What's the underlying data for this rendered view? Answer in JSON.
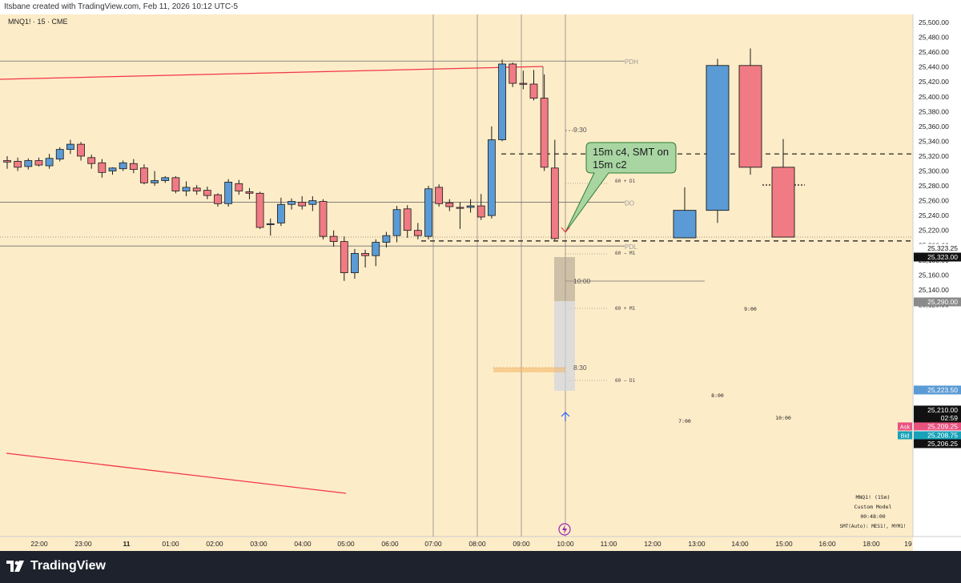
{
  "header": {
    "title": "Itsbane created with TradingView.com, Feb 11, 2026 10:12 UTC-5"
  },
  "symbol": {
    "label": "MNQ1! · 15 · CME"
  },
  "branding": {
    "logo_text": "TradingView"
  },
  "colors": {
    "background": "#fdecc8",
    "bull": "#5b9bd5",
    "bear": "#f07b84",
    "trendline": "#f23645",
    "grid_line": "#888888",
    "callout_fill": "#a8d5a2"
  },
  "axis": {
    "price_ticks": [
      "25,500.00",
      "25,480.00",
      "25,460.00",
      "25,440.00",
      "25,420.00",
      "25,400.00",
      "25,380.00",
      "25,360.00",
      "25,340.00",
      "25,320.00",
      "25,300.00",
      "25,280.00",
      "25,260.00",
      "25,240.00",
      "25,220.00",
      "25,200.00",
      "25,180.00",
      "25,160.00",
      "25,140.00",
      "25,120.00"
    ],
    "time_ticks": [
      "22:00",
      "23:00",
      "11",
      "01:00",
      "02:00",
      "03:00",
      "04:00",
      "05:00",
      "06:00",
      "07:00",
      "08:00",
      "09:00",
      "10:00",
      "11:00",
      "12:00",
      "13:00",
      "14:00",
      "15:00",
      "16:00",
      "18:00",
      "19"
    ]
  },
  "price_badges": {
    "b1": "25,323.25",
    "b2": "25,323.00",
    "b3": "25,290.00",
    "b4": "25,223.50",
    "b5": "25,210.00",
    "b6": "02:59",
    "ask_label": "Ask",
    "ask_value": "25,209.25",
    "bid_label": "Bid",
    "bid_value": "25,208.75",
    "b9": "25,206.25"
  },
  "annotations": {
    "callout_line1": "15m c4, SMT on",
    "callout_line2": "15m c2",
    "pdh": "PDH",
    "pdl": "PDL",
    "do": "DO",
    "t930": "9:30",
    "t1000": "10:00",
    "t830": "8:30",
    "l60d1_up": "60 + D1",
    "l60m1_down": "60 − M1",
    "l60m1_up": "60 + M1",
    "l60d1_down": "60 − D1",
    "htf_700": "7:00",
    "htf_800": "8:00",
    "htf_900": "9:00",
    "htf_1000": "10:00"
  },
  "info_panel": {
    "line1": "MNQ1! (15m)",
    "line2": "Custom Model",
    "line3": "00:48:00",
    "line4": "SMT(Auto): MES1!, MYM1!"
  },
  "chart_data": {
    "type": "candlestick",
    "symbol": "MNQ1!",
    "interval": "15",
    "ylim": [
      25110,
      25510
    ],
    "ltf_candles": [
      {
        "time": "21:30",
        "o": 25314,
        "h": 25320,
        "l": 25303,
        "c": 25312
      },
      {
        "time": "21:45",
        "o": 25313,
        "h": 25318,
        "l": 25300,
        "c": 25305
      },
      {
        "time": "22:00",
        "o": 25306,
        "h": 25317,
        "l": 25302,
        "c": 25314
      },
      {
        "time": "22:15",
        "o": 25314,
        "h": 25318,
        "l": 25306,
        "c": 25308
      },
      {
        "time": "22:30",
        "o": 25307,
        "h": 25323,
        "l": 25303,
        "c": 25317
      },
      {
        "time": "22:45",
        "o": 25316,
        "h": 25332,
        "l": 25313,
        "c": 25329
      },
      {
        "time": "23:00",
        "o": 25329,
        "h": 25342,
        "l": 25323,
        "c": 25336
      },
      {
        "time": "23:15",
        "o": 25336,
        "h": 25339,
        "l": 25314,
        "c": 25320
      },
      {
        "time": "23:30",
        "o": 25318,
        "h": 25322,
        "l": 25303,
        "c": 25310
      },
      {
        "time": "23:45",
        "o": 25311,
        "h": 25316,
        "l": 25291,
        "c": 25298
      },
      {
        "time": "00:00",
        "o": 25300,
        "h": 25305,
        "l": 25295,
        "c": 25304
      },
      {
        "time": "00:15",
        "o": 25303,
        "h": 25314,
        "l": 25300,
        "c": 25311
      },
      {
        "time": "00:30",
        "o": 25310,
        "h": 25316,
        "l": 25297,
        "c": 25302
      },
      {
        "time": "00:45",
        "o": 25304,
        "h": 25309,
        "l": 25282,
        "c": 25284
      },
      {
        "time": "01:00",
        "o": 25284,
        "h": 25300,
        "l": 25280,
        "c": 25287
      },
      {
        "time": "01:15",
        "o": 25287,
        "h": 25293,
        "l": 25284,
        "c": 25291
      },
      {
        "time": "01:30",
        "o": 25291,
        "h": 25293,
        "l": 25270,
        "c": 25273
      },
      {
        "time": "01:45",
        "o": 25273,
        "h": 25286,
        "l": 25266,
        "c": 25278
      },
      {
        "time": "02:00",
        "o": 25277,
        "h": 25281,
        "l": 25268,
        "c": 25273
      },
      {
        "time": "02:15",
        "o": 25274,
        "h": 25279,
        "l": 25262,
        "c": 25267
      },
      {
        "time": "02:30",
        "o": 25268,
        "h": 25270,
        "l": 25252,
        "c": 25256
      },
      {
        "time": "02:45",
        "o": 25256,
        "h": 25289,
        "l": 25252,
        "c": 25285
      },
      {
        "time": "03:00",
        "o": 25283,
        "h": 25288,
        "l": 25268,
        "c": 25273
      },
      {
        "time": "03:15",
        "o": 25272,
        "h": 25277,
        "l": 25262,
        "c": 25270
      },
      {
        "time": "03:30",
        "o": 25270,
        "h": 25272,
        "l": 25222,
        "c": 25224
      },
      {
        "time": "03:45",
        "o": 25228,
        "h": 25236,
        "l": 25213,
        "c": 25229
      },
      {
        "time": "04:00",
        "o": 25230,
        "h": 25264,
        "l": 25226,
        "c": 25255
      },
      {
        "time": "04:15",
        "o": 25255,
        "h": 25263,
        "l": 25248,
        "c": 25259
      },
      {
        "time": "04:30",
        "o": 25258,
        "h": 25266,
        "l": 25248,
        "c": 25253
      },
      {
        "time": "04:45",
        "o": 25255,
        "h": 25266,
        "l": 25246,
        "c": 25260
      },
      {
        "time": "05:00",
        "o": 25259,
        "h": 25262,
        "l": 25208,
        "c": 25212
      },
      {
        "time": "05:15",
        "o": 25212,
        "h": 25220,
        "l": 25198,
        "c": 25205
      },
      {
        "time": "05:30",
        "o": 25205,
        "h": 25212,
        "l": 25152,
        "c": 25163
      },
      {
        "time": "05:45",
        "o": 25163,
        "h": 25195,
        "l": 25155,
        "c": 25189
      },
      {
        "time": "06:00",
        "o": 25189,
        "h": 25194,
        "l": 25170,
        "c": 25186
      },
      {
        "time": "06:15",
        "o": 25186,
        "h": 25208,
        "l": 25172,
        "c": 25204
      },
      {
        "time": "06:30",
        "o": 25204,
        "h": 25218,
        "l": 25197,
        "c": 25213
      },
      {
        "time": "06:45",
        "o": 25213,
        "h": 25253,
        "l": 25204,
        "c": 25248
      },
      {
        "time": "07:00",
        "o": 25249,
        "h": 25254,
        "l": 25210,
        "c": 25220
      },
      {
        "time": "07:15",
        "o": 25220,
        "h": 25230,
        "l": 25208,
        "c": 25213
      },
      {
        "time": "07:30",
        "o": 25212,
        "h": 25280,
        "l": 25208,
        "c": 25276
      },
      {
        "time": "07:45",
        "o": 25278,
        "h": 25282,
        "l": 25252,
        "c": 25256
      },
      {
        "time": "08:00",
        "o": 25257,
        "h": 25262,
        "l": 25246,
        "c": 25252
      },
      {
        "time": "08:15",
        "o": 25251,
        "h": 25258,
        "l": 25222,
        "c": 25250
      },
      {
        "time": "08:30",
        "o": 25251,
        "h": 25262,
        "l": 25244,
        "c": 25253
      },
      {
        "time": "08:45",
        "o": 25253,
        "h": 25269,
        "l": 25234,
        "c": 25238
      },
      {
        "time": "09:00",
        "o": 25240,
        "h": 25360,
        "l": 25236,
        "c": 25342
      },
      {
        "time": "09:15",
        "o": 25342,
        "h": 25450,
        "l": 25340,
        "c": 25444
      },
      {
        "time": "09:30",
        "o": 25444,
        "h": 25446,
        "l": 25413,
        "c": 25418
      },
      {
        "time": "09:45",
        "o": 25418,
        "h": 25435,
        "l": 25410,
        "c": 25417
      },
      {
        "time": "10:00",
        "o": 25417,
        "h": 25436,
        "l": 25395,
        "c": 25398
      },
      {
        "time": "10:15",
        "o": 25398,
        "h": 25430,
        "l": 25300,
        "c": 25305
      },
      {
        "time": "10:30",
        "o": 25304,
        "h": 25342,
        "l": 25207,
        "c": 25209
      }
    ],
    "htf_candles": [
      {
        "label": "7:00",
        "o": 25210,
        "h": 25278,
        "l": 25210,
        "c": 25247
      },
      {
        "label": "8:00",
        "o": 25247,
        "h": 25451,
        "l": 25230,
        "c": 25442
      },
      {
        "label": "9:00",
        "o": 25442,
        "h": 25465,
        "l": 25295,
        "c": 25305
      },
      {
        "label": "10:00",
        "o": 25305,
        "h": 25343,
        "l": 25211,
        "c": 25211
      }
    ],
    "levels": {
      "PDH": 25448,
      "PDL": 25199,
      "DO": 25258,
      "dashed_high": 25323,
      "dashed_low": 25209
    }
  }
}
